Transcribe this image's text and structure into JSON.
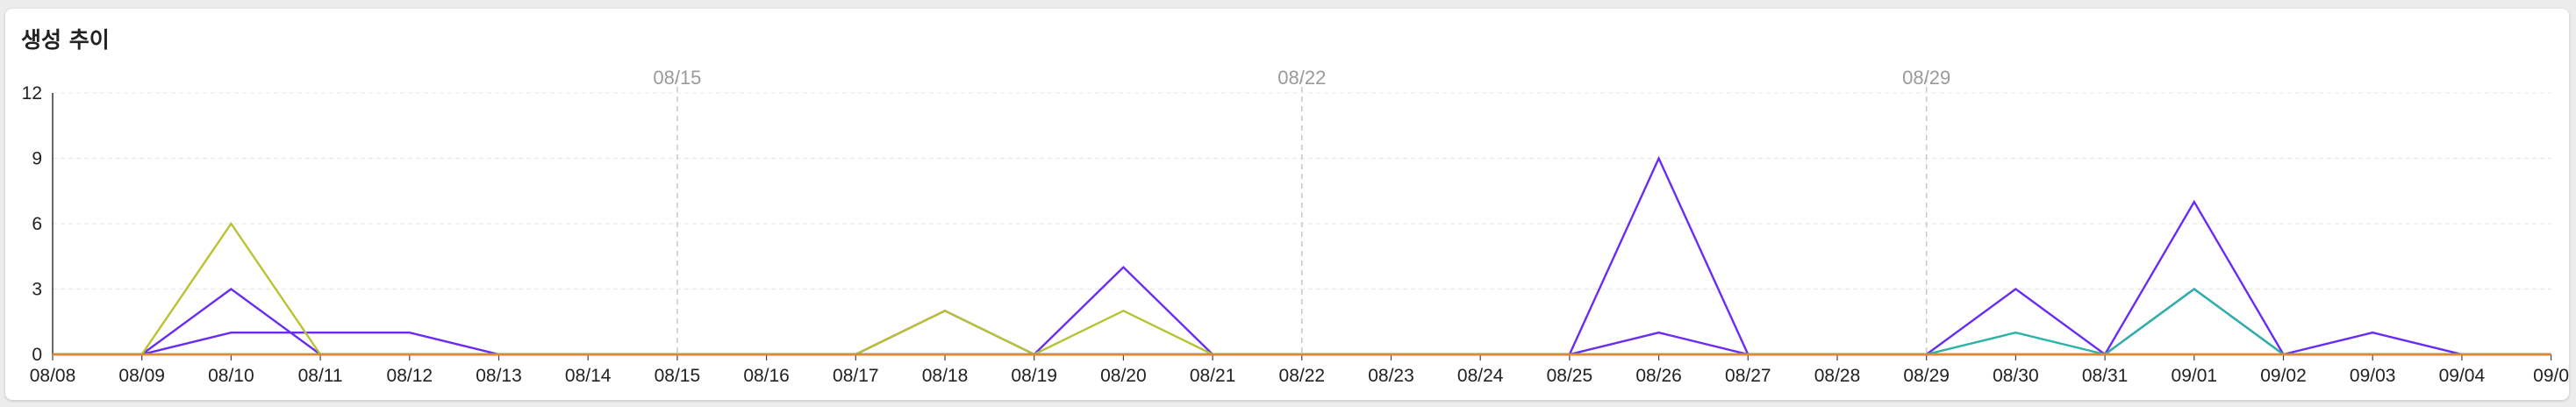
{
  "card": {
    "title": "생성 추이"
  },
  "chart_data": {
    "type": "line",
    "title": "생성 추이",
    "xlabel": "",
    "ylabel": "",
    "categories": [
      "08/08",
      "08/09",
      "08/10",
      "08/11",
      "08/12",
      "08/13",
      "08/14",
      "08/15",
      "08/16",
      "08/17",
      "08/18",
      "08/19",
      "08/20",
      "08/21",
      "08/22",
      "08/23",
      "08/24",
      "08/25",
      "08/26",
      "08/27",
      "08/28",
      "08/29",
      "08/30",
      "08/31",
      "09/01",
      "09/02",
      "09/03",
      "09/04",
      "09/0"
    ],
    "ylim": [
      0,
      12
    ],
    "yticks": [
      0,
      3,
      6,
      9,
      12
    ],
    "week_markers": [
      "08/15",
      "08/22",
      "08/29"
    ],
    "grid": true,
    "series": [
      {
        "color": "#6a2cf5",
        "values": [
          0,
          0,
          3,
          0,
          0,
          0,
          0,
          0,
          0,
          0,
          2,
          0,
          4,
          0,
          0,
          0,
          0,
          0,
          9,
          0,
          0,
          0,
          3,
          0,
          7,
          0,
          0,
          0,
          0
        ]
      },
      {
        "color": "#6a2cf5",
        "values": [
          0,
          0,
          1,
          1,
          1,
          0,
          0,
          0,
          0,
          0,
          0,
          0,
          0,
          0,
          0,
          0,
          0,
          0,
          1,
          0,
          0,
          0,
          0,
          0,
          3,
          0,
          1,
          0,
          0
        ]
      },
      {
        "color": "#b8c232",
        "values": [
          0,
          0,
          6,
          0,
          0,
          0,
          0,
          0,
          0,
          0,
          2,
          0,
          2,
          0,
          0,
          0,
          0,
          0,
          0,
          0,
          0,
          0,
          0,
          0,
          0,
          0,
          0,
          0,
          0
        ]
      },
      {
        "color": "#2ab3a6",
        "values": [
          0,
          0,
          0,
          0,
          0,
          0,
          0,
          0,
          0,
          0,
          0,
          0,
          0,
          0,
          0,
          0,
          0,
          0,
          0,
          0,
          0,
          0,
          1,
          0,
          3,
          0,
          0,
          0,
          0
        ]
      },
      {
        "color": "#e8852a",
        "values": [
          0,
          0,
          0,
          0,
          0,
          0,
          0,
          0,
          0,
          0,
          0,
          0,
          0,
          0,
          0,
          0,
          0,
          0,
          0,
          0,
          0,
          0,
          0,
          0,
          0,
          0,
          0,
          0,
          0
        ]
      }
    ]
  }
}
